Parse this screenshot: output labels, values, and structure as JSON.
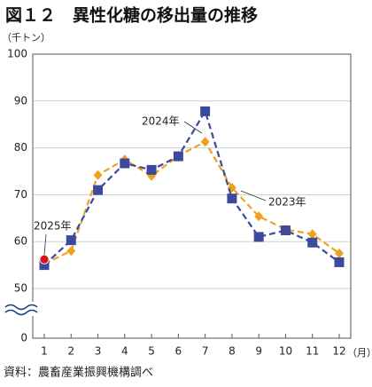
{
  "chart_data": {
    "type": "line",
    "title": "図１２　異性化糖の移出量の推移",
    "y_label": "（千トン）",
    "x_label": "（月）",
    "source": "資料：農畜産業振興機構調べ",
    "categories": [
      "1",
      "2",
      "3",
      "4",
      "5",
      "6",
      "7",
      "8",
      "9",
      "10",
      "11",
      "12"
    ],
    "series": [
      {
        "name": "2023年",
        "color": "#f0a020",
        "marker": "diamond",
        "values": [
          55.3,
          58,
          74.2,
          77.5,
          74,
          78.3,
          81.3,
          71.5,
          65.4,
          62.6,
          61.6,
          57.5
        ]
      },
      {
        "name": "2024年",
        "color": "#3b4a9c",
        "marker": "square",
        "values": [
          55,
          60.3,
          71,
          76.7,
          75.3,
          78.2,
          87.8,
          69.2,
          61,
          62.4,
          59.8,
          55.6
        ]
      },
      {
        "name": "2025年",
        "color": "#d8121a",
        "marker": "circle",
        "values": [
          56.2,
          null,
          null,
          null,
          null,
          null,
          null,
          null,
          null,
          null,
          null,
          null
        ]
      }
    ],
    "ylim": [
      0,
      100
    ],
    "y_break": [
      0,
      50
    ],
    "yticks": [
      0,
      50,
      60,
      70,
      80,
      90,
      100
    ],
    "grid": true
  }
}
